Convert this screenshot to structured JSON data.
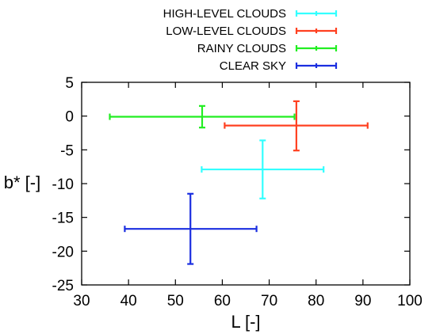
{
  "chart_data": {
    "type": "scatter",
    "title": "",
    "xlabel": "L [-]",
    "ylabel": "b* [-]",
    "xlim": [
      30,
      100
    ],
    "ylim": [
      -25,
      5
    ],
    "x_ticks": [
      "30",
      "40",
      "50",
      "60",
      "70",
      "80",
      "90",
      "100"
    ],
    "y_ticks": [
      "5",
      "0",
      "-5",
      "-10",
      "-15",
      "-20",
      "-25"
    ],
    "grid": false,
    "legend_position": "top-center",
    "series": [
      {
        "name": "HIGH-LEVEL CLOUDS",
        "color": "#33ffff",
        "x": 68.6,
        "y": -7.9,
        "x_low": 55.6,
        "x_high": 81.6,
        "y_low": -12.2,
        "y_high": -3.6
      },
      {
        "name": "LOW-LEVEL CLOUDS",
        "color": "#ff4020",
        "x": 75.8,
        "y": -1.4,
        "x_low": 60.5,
        "x_high": 91.0,
        "y_low": -5.1,
        "y_high": 2.2
      },
      {
        "name": "RAINY CLOUDS",
        "color": "#22ee22",
        "x": 55.7,
        "y": -0.1,
        "x_low": 36.0,
        "x_high": 75.4,
        "y_low": -1.7,
        "y_high": 1.5
      },
      {
        "name": "CLEAR SKY",
        "color": "#1a2ee0",
        "x": 53.2,
        "y": -16.7,
        "x_low": 39.2,
        "x_high": 67.3,
        "y_low": -21.9,
        "y_high": -11.5
      }
    ]
  }
}
